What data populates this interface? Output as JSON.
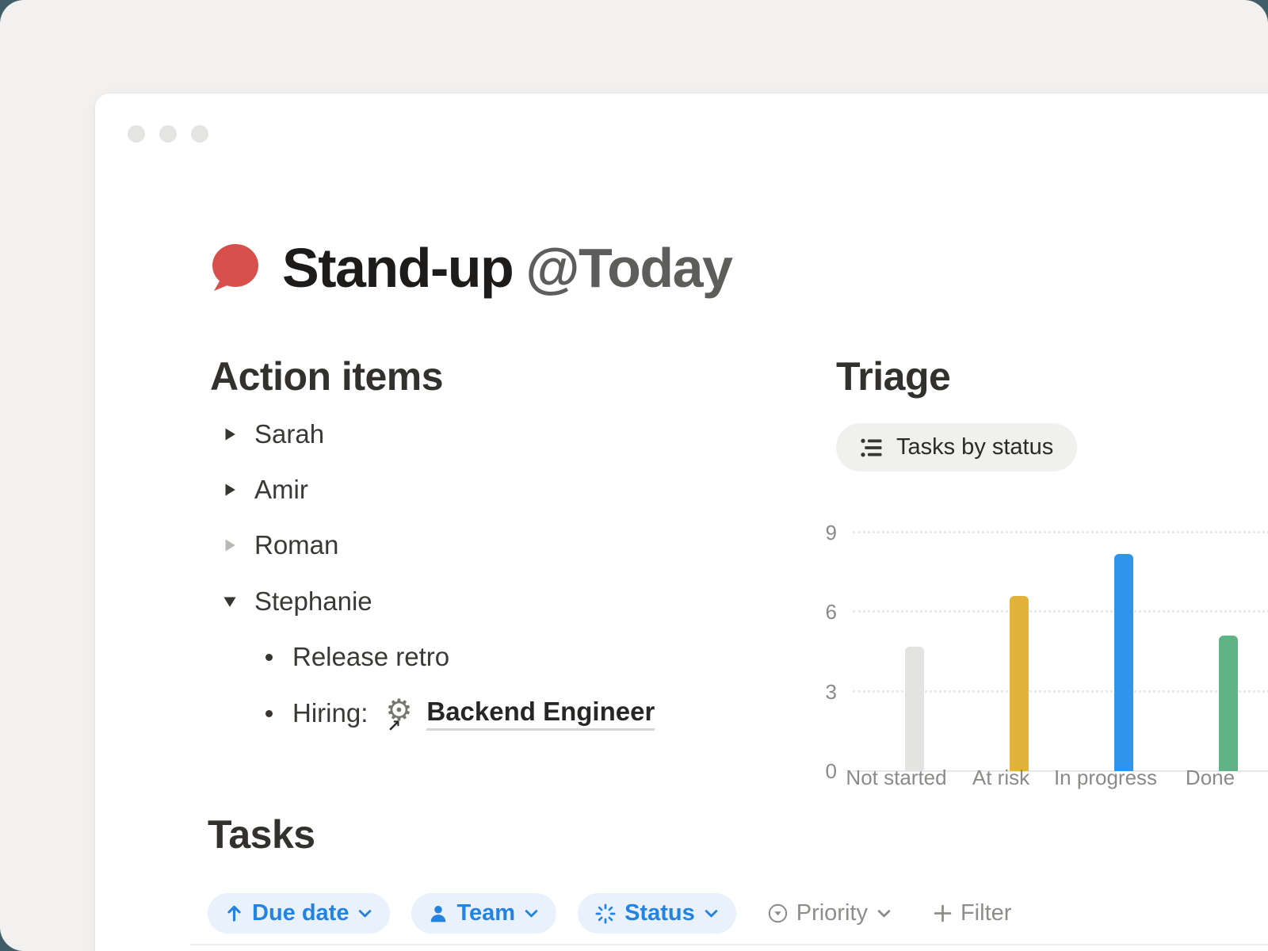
{
  "page": {
    "title": {
      "main": "Stand-up",
      "mention": "@Today"
    },
    "icon": "speech-bubble",
    "icon_color": "#d8504b"
  },
  "action_items": {
    "heading": "Action items",
    "items": [
      {
        "label": "Sarah",
        "toggle": "collapsed"
      },
      {
        "label": "Amir",
        "toggle": "collapsed"
      },
      {
        "label": "Roman",
        "toggle": "collapsed-muted"
      },
      {
        "label": "Stephanie",
        "toggle": "expanded"
      }
    ],
    "sub_items": [
      {
        "label": "Release retro"
      },
      {
        "prefix": "Hiring:",
        "link_label": "Backend Engineer",
        "link_icon": "gear-with-arrow"
      }
    ]
  },
  "triage": {
    "heading": "Triage",
    "view_button": {
      "icon": "bulleted-list",
      "label": "Tasks by status"
    }
  },
  "chart_data": {
    "type": "bar",
    "title": "Tasks by status",
    "categories": [
      "Not started",
      "At risk",
      "In progress",
      "Done"
    ],
    "values": [
      4.7,
      6.6,
      8.2,
      5.1
    ],
    "bar_colors": [
      "#e3e3e1",
      "#e3b23b",
      "#3094ec",
      "#5eb485"
    ],
    "xlabel": "",
    "ylabel": "",
    "ylim": [
      0,
      9
    ],
    "yticks": [
      0,
      3,
      6,
      9
    ],
    "grid": "horizontal-dotted",
    "legend_position": "none"
  },
  "tasks": {
    "heading": "Tasks",
    "filters": [
      {
        "label": "Due date",
        "icon": "arrow-up",
        "style": "active-pill"
      },
      {
        "label": "Team",
        "icon": "person",
        "style": "active-pill"
      },
      {
        "label": "Status",
        "icon": "spinner",
        "style": "active-pill"
      },
      {
        "label": "Priority",
        "icon": "circle-caret-down",
        "style": "ghost"
      },
      {
        "label": "Filter",
        "icon": "plus",
        "style": "ghost"
      }
    ]
  },
  "icons": {
    "toggle_collapsed": "right-triangle",
    "toggle_expanded": "down-triangle",
    "bullet": "disc",
    "chevron": "chevron-down",
    "window_dots": "three-gray-dots"
  },
  "colors": {
    "backdrop": "#415d67",
    "canvas": "#f2f1ef",
    "window": "#ffffff",
    "accent_blue": "#2383e2",
    "pill_bg": "#e8f1fc",
    "muted_gray": "#8d8d8a",
    "bar_gray": "#e3e3e1",
    "bar_yellow": "#e3b23b",
    "bar_blue": "#3094ec",
    "bar_green": "#5eb485"
  }
}
